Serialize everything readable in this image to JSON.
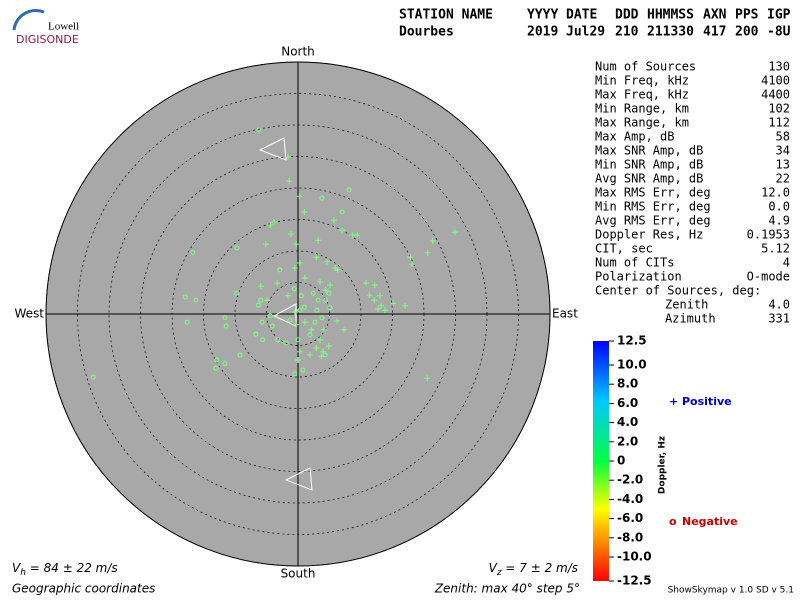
{
  "logo": {
    "top": "Lowell",
    "bottom": "DIGISONDE"
  },
  "header": {
    "columns": [
      "STATION NAME",
      "YYYY",
      "DATE",
      "DDD",
      "HHMMSS",
      "AXN",
      "PPS",
      "IGP"
    ],
    "values": [
      "Dourbes",
      "2019",
      "Jul29",
      "210",
      "211330",
      "417",
      "200",
      "-8U"
    ]
  },
  "stats": [
    [
      "Num of Sources",
      "130"
    ],
    [
      "Min Freq, kHz",
      "4100"
    ],
    [
      "Max Freq, kHz",
      "4400"
    ],
    [
      "Min Range, km",
      "102"
    ],
    [
      "Max Range, km",
      "112"
    ],
    [
      "Max Amp, dB",
      "58"
    ],
    [
      "Max SNR Amp, dB",
      "34"
    ],
    [
      "Min SNR Amp, dB",
      "13"
    ],
    [
      "Avg SNR Amp, dB",
      "22"
    ],
    [
      "Max RMS Err, deg",
      "12.0"
    ],
    [
      "Min RMS Err, deg",
      "0.0"
    ],
    [
      "Avg RMS Err, deg",
      "4.9"
    ],
    [
      "Doppler Res, Hz",
      "0.1953"
    ],
    [
      "CIT, sec",
      "5.12"
    ],
    [
      "Num of CITs",
      "4"
    ],
    [
      "Polarization",
      "O-mode"
    ]
  ],
  "center": {
    "title": "Center of Sources, deg:",
    "rows": [
      [
        "Zenith",
        "4.0"
      ],
      [
        "Azimuth",
        "331"
      ]
    ]
  },
  "footer": {
    "vh": {
      "symbol": "V",
      "sub": "h",
      "text": " = 84 ± 22 m/s"
    },
    "vz": {
      "symbol": "V",
      "sub": "z",
      "text": " = 7 ± 2 m/s"
    },
    "coords": "Geographic coordinates",
    "zenith": "Zenith: max 40°  step 5°",
    "version": "ShowSkymap v 1.0  SD v 5.1"
  },
  "chart_data": {
    "type": "scatter",
    "directions": {
      "north": "North",
      "south": "South",
      "east": "East",
      "west": "West"
    },
    "xlim": [
      -40,
      40
    ],
    "ylim": [
      -40,
      40
    ],
    "rticks": [
      5,
      10,
      15,
      20,
      25,
      30,
      35,
      40
    ],
    "colorbar": {
      "label": "Doppler, Hz",
      "lim": [
        -12.5,
        12.5
      ],
      "ticks": [
        12.5,
        {
          "value": 10,
          "label": "10.0"
        },
        {
          "value": 8,
          "label": "8.0"
        },
        {
          "value": 6,
          "label": "6.0"
        },
        {
          "value": 4,
          "label": "4.0"
        },
        {
          "value": 2,
          "label": "2.0"
        },
        0,
        {
          "value": -2,
          "label": "-2.0"
        },
        {
          "value": -4,
          "label": "-4.0"
        },
        {
          "value": -6,
          "label": "-6.0"
        },
        {
          "value": -8,
          "label": "-8.0"
        },
        {
          "value": -10,
          "label": "-10.0"
        },
        -12.5
      ]
    },
    "series": [
      {
        "name": "Positive",
        "marker": "+",
        "color": "#80ff80",
        "legend_color": "#0000cc",
        "x": [
          -1.6,
          -1.4,
          0.2,
          -4.4,
          -3.8,
          1.0,
          5.7,
          7.0,
          8.6,
          9.4,
          21.4,
          24.9,
          17.8,
          18.1,
          20.6,
          -1.1,
          -5.1,
          -0.3,
          3.2,
          2.9,
          4.6,
          5.9,
          -0.5,
          0.3,
          1.1,
          3.5,
          -3.3,
          10.8,
          12.2,
          5.1,
          4.4,
          6.3,
          11.3,
          13.0,
          13.2,
          13.8,
          12.7,
          15.1,
          17.0,
          12.1,
          6.2,
          7.3,
          4.1,
          3.5,
          4.9,
          2.9,
          3.7,
          1.9,
          4.0,
          2.1,
          -0.5,
          -0.3,
          0.3,
          20.5,
          0.0,
          1.1,
          -1.6,
          -5.9,
          -4.9
        ],
        "y": [
          24.9,
          21.1,
          18.7,
          14.1,
          14.6,
          16.2,
          14.9,
          13.3,
          12.5,
          12.5,
          11.6,
          13.0,
          9.0,
          7.9,
          9.7,
          12.7,
          11.1,
          11.1,
          11.7,
          9.0,
          8.3,
          7.3,
          7.3,
          8.1,
          5.7,
          5.1,
          4.9,
          4.9,
          4.6,
          4.6,
          3.8,
          7.0,
          3.0,
          2.9,
          1.3,
          0.6,
          0.8,
          1.7,
          1.3,
          2.2,
          -1.1,
          -2.5,
          -2.5,
          -4.1,
          -5.1,
          -5.4,
          -6.7,
          -6.5,
          -6.0,
          -2.5,
          0.3,
          -1.7,
          -6.0,
          -10.2,
          -7.3,
          -1.3,
          2.9,
          4.4,
          2.2
        ]
      },
      {
        "name": "Negative",
        "marker": "o",
        "color": "#80ff80",
        "legend_color": "#cc0000",
        "x": [
          -6.2,
          8.1,
          3.8,
          7.0,
          -9.7,
          -16.7,
          -2.9,
          -17.9,
          -16.2,
          -9.7,
          -5.9,
          -6.3,
          -11.6,
          -17.6,
          -11.4,
          -5.7,
          -4.1,
          -1.3,
          0.3,
          1.0,
          3.2,
          4.4,
          4.9,
          5.1,
          2.7,
          3.8,
          -9.2,
          -12.9,
          -11.6,
          -13.0,
          0.8,
          -0.5,
          -32.5,
          -3.2,
          -1.9,
          1.9,
          4.3,
          0.0,
          -5.6,
          -6.7,
          -4.4,
          -0.6,
          0.5,
          2.4,
          3.0
        ],
        "y": [
          29.2,
          19.7,
          18.4,
          16.2,
          10.5,
          9.8,
          7.0,
          2.7,
          2.2,
          3.3,
          2.2,
          1.4,
          -0.6,
          -1.3,
          -1.9,
          -1.3,
          -1.9,
          -1.0,
          0.6,
          1.1,
          2.2,
          2.2,
          3.3,
          1.0,
          -1.3,
          -0.6,
          -6.5,
          -7.3,
          -7.9,
          -8.6,
          -8.9,
          -9.5,
          -10.0,
          -4.1,
          -4.6,
          -3.3,
          -6.5,
          -4.1,
          -4.1,
          -3.2,
          -0.3,
          4.0,
          2.9,
          3.3,
          0.6
        ]
      }
    ]
  }
}
